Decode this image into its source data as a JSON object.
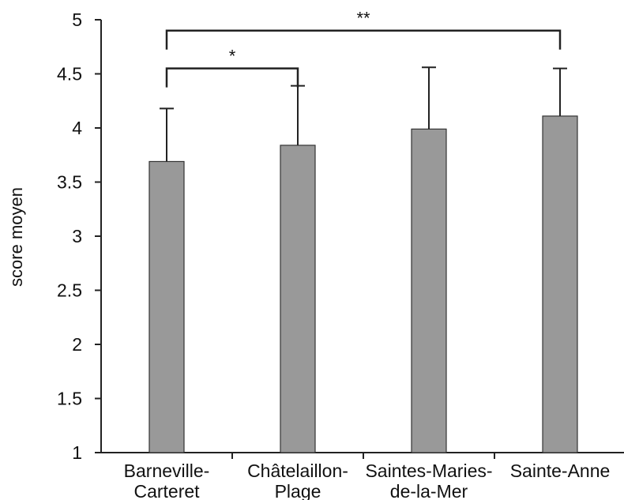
{
  "chart_data": {
    "type": "bar",
    "title": "",
    "xlabel": "",
    "ylabel": "score moyen",
    "ylim": [
      1,
      5
    ],
    "y_ticks": [
      "1",
      "1.5",
      "2",
      "2.5",
      "3",
      "3.5",
      "4",
      "4.5",
      "5"
    ],
    "categories": [
      [
        "Barneville-",
        "Carteret"
      ],
      [
        "Châtelaillon-",
        "Plage"
      ],
      [
        "Saintes-Maries-",
        "de-la-Mer"
      ],
      [
        "Sainte-Anne"
      ]
    ],
    "values": [
      3.69,
      3.84,
      3.99,
      4.11
    ],
    "error_upper": [
      0.49,
      0.55,
      0.57,
      0.44
    ],
    "bar_color": "#999999",
    "bar_edge_color": "#333333",
    "grid": false,
    "legend": "none",
    "significance": [
      {
        "from": 0,
        "to": 1,
        "label": "*",
        "y": 4.55
      },
      {
        "from": 0,
        "to": 3,
        "label": "**",
        "y": 4.9
      }
    ]
  }
}
